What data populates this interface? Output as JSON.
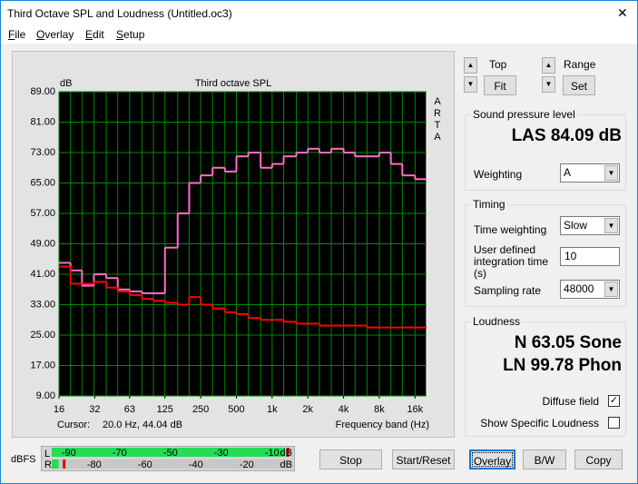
{
  "window": {
    "title": "Third Octave SPL and Loudness (Untitled.oc3)"
  },
  "menu": [
    "File",
    "Overlay",
    "Edit",
    "Setup"
  ],
  "chart_data": {
    "type": "step",
    "title": "Third octave SPL",
    "y_label": "dB",
    "x_label": "Frequency band (Hz)",
    "side_label": "ARTA",
    "cursor_label": "Cursor:",
    "cursor_text": "20.0 Hz, 44.04 dB",
    "x": [
      16,
      20,
      25,
      31.5,
      40,
      50,
      63,
      80,
      100,
      125,
      160,
      200,
      250,
      315,
      400,
      500,
      630,
      800,
      1000,
      1250,
      1600,
      2000,
      2500,
      3150,
      4000,
      5000,
      6300,
      8000,
      10000,
      12500,
      16000
    ],
    "series": [
      {
        "color": "#ff6ec7",
        "values": [
          44,
          42,
          38,
          41,
          40,
          37,
          36.5,
          36,
          36,
          48,
          57,
          65,
          67,
          69,
          68,
          72,
          73,
          69,
          70,
          72,
          73,
          74,
          73,
          74,
          73,
          72,
          72,
          73,
          70,
          67,
          66
        ]
      },
      {
        "color": "#ff0000",
        "values": [
          43,
          38.5,
          38.5,
          39,
          37.5,
          36.5,
          35.5,
          34.5,
          34,
          33.5,
          33,
          35,
          33,
          32,
          31,
          30.5,
          29.5,
          29,
          29,
          28.5,
          28,
          28,
          27.5,
          27.5,
          27.5,
          27.5,
          27,
          27,
          27,
          27,
          27
        ]
      }
    ],
    "xlim": [
      16,
      20000
    ],
    "log_x": true,
    "xticks": [
      16,
      32,
      63,
      125,
      250,
      500,
      {
        "value": 1000,
        "label": "1k"
      },
      {
        "value": 2000,
        "label": "2k"
      },
      {
        "value": 4000,
        "label": "4k"
      },
      {
        "value": 8000,
        "label": "8k"
      },
      {
        "value": 16000,
        "label": "16k"
      }
    ],
    "ylim": [
      9,
      89
    ],
    "yticks": [
      {
        "value": 9,
        "label": "9.00"
      },
      {
        "value": 17,
        "label": "17.00"
      },
      {
        "value": 25,
        "label": "25.00"
      },
      {
        "value": 33,
        "label": "33.00"
      },
      {
        "value": 41,
        "label": "41.00"
      },
      {
        "value": 49,
        "label": "49.00"
      },
      {
        "value": 57,
        "label": "57.00"
      },
      {
        "value": 65,
        "label": "65.00"
      },
      {
        "value": 73,
        "label": "73.00"
      },
      {
        "value": 81,
        "label": "81.00"
      },
      {
        "value": 89,
        "label": "89.00"
      }
    ],
    "grid": true
  },
  "view": {
    "top_label": "Top",
    "fit": "Fit",
    "range_label": "Range",
    "set": "Set"
  },
  "spl": {
    "title": "Sound pressure level",
    "reading": "LAS 84.09 dB",
    "weighting_label": "Weighting",
    "weighting": "A"
  },
  "timing": {
    "title": "Timing",
    "time_weighting_label": "Time weighting",
    "time_weighting": "Slow",
    "integration_label": "User defined integration time (s)",
    "integration": "10",
    "sampling_label": "Sampling rate",
    "sampling": "48000"
  },
  "loudness": {
    "title": "Loudness",
    "sone": "N 63.05 Sone",
    "phon": "LN 99.78 Phon",
    "diffuse_label": "Diffuse field",
    "diffuse": true,
    "specific_label": "Show Specific Loudness",
    "specific": false
  },
  "meter": {
    "label": "dBFS",
    "unit": "dB",
    "range": [
      -101,
      -1
    ],
    "left_channel": "L",
    "right_channel": "R",
    "left_level": -5,
    "left_peak": -4,
    "right_level": -94,
    "right_peak": -92,
    "top_ticks": [
      -90,
      -70,
      -50,
      -30,
      -10
    ],
    "bottom_ticks": [
      -80,
      -60,
      -40,
      -20
    ]
  },
  "buttons": [
    "Stop",
    "Start/Reset",
    "Overlay",
    "B/W",
    "Copy"
  ]
}
